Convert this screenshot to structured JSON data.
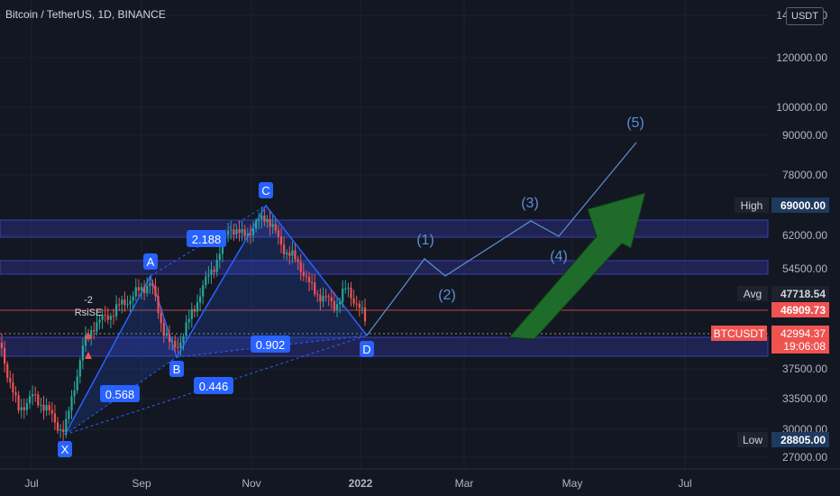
{
  "header": {
    "title": "Bitcoin / TetherUS, 1D, BINANCE",
    "currency": "USDT"
  },
  "colors": {
    "background": "#131722",
    "zone": "#2a2e7a",
    "pattern": "#2962ff",
    "up": "#26a69a",
    "down": "#ef5350",
    "arrow": "#1f6b2a",
    "wave": "#5b8fd6"
  },
  "price_axis": {
    "ticks": [
      "140000.00",
      "120000.00",
      "100000.00",
      "90000.00",
      "78000.00",
      "62000.00",
      "54500.00",
      "37500.00",
      "33500.00",
      "30000.00",
      "27000.00"
    ]
  },
  "time_axis": {
    "ticks": [
      "Jul",
      "Sep",
      "Nov",
      "2022",
      "Mar",
      "May",
      "Jul"
    ]
  },
  "labels": {
    "high": {
      "tag": "High",
      "value": "69000.00"
    },
    "avg": {
      "tag": "Avg",
      "value": "47718.54"
    },
    "last_line": {
      "value": "46909.73"
    },
    "current": {
      "tag": "BTCUSDT",
      "value": "42994.37",
      "countdown": "19:06:08"
    },
    "low": {
      "tag": "Low",
      "value": "28805.00"
    }
  },
  "pattern": {
    "points": [
      "X",
      "A",
      "B",
      "C",
      "D"
    ],
    "ratios": [
      "0.568",
      "2.188",
      "0.902",
      "0.446"
    ]
  },
  "waves": [
    "(1)",
    "(2)",
    "(3)",
    "(4)",
    "(5)"
  ],
  "indicator": {
    "value": "-2",
    "name": "RsiSE"
  }
}
